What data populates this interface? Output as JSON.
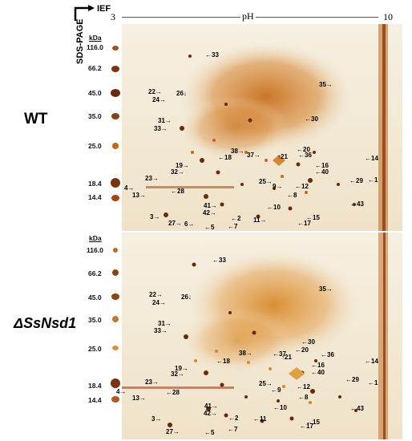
{
  "axis": {
    "vertical_label": "SDS-PAGE",
    "horizontal_label": "IEF",
    "ph_label": "pH",
    "ph_min": "3",
    "ph_max": "10"
  },
  "panels": [
    {
      "name": "WT",
      "kda_label": "kDa",
      "markers": [
        "116.0",
        "66.2",
        "45.0",
        "35.0",
        "25.0",
        "18.4",
        "14.4"
      ],
      "spots": [
        "33",
        "35",
        "22",
        "24",
        "26",
        "31",
        "33",
        "30",
        "38",
        "37",
        "20",
        "21",
        "36",
        "19",
        "18",
        "16",
        "40",
        "14",
        "23",
        "32",
        "4",
        "28",
        "25",
        "9",
        "12",
        "29",
        "1",
        "13",
        "8",
        "41",
        "42",
        "10",
        "43",
        "3",
        "2",
        "27",
        "6",
        "5",
        "7",
        "11",
        "15",
        "17"
      ]
    },
    {
      "name": "ΔSsNsd1",
      "kda_label": "kDa",
      "markers": [
        "116.0",
        "66.2",
        "45.0",
        "35.0",
        "25.0",
        "18.4",
        "14.4"
      ],
      "spots": [
        "33",
        "35",
        "22",
        "24",
        "26",
        "31",
        "33",
        "30",
        "20",
        "21",
        "38",
        "37",
        "36",
        "14",
        "19",
        "18",
        "16",
        "40",
        "32",
        "23",
        "28",
        "29",
        "4",
        "25",
        "12",
        "1",
        "13",
        "9",
        "8",
        "43",
        "41",
        "42",
        "10",
        "2",
        "3",
        "11",
        "15",
        "27",
        "5",
        "7",
        "17"
      ]
    }
  ],
  "colors": {
    "gel_background": "#f2e7d2",
    "spot_dark": "#5a2a0a",
    "spot_orange": "#c8681e",
    "spot_light": "#e0a050"
  }
}
